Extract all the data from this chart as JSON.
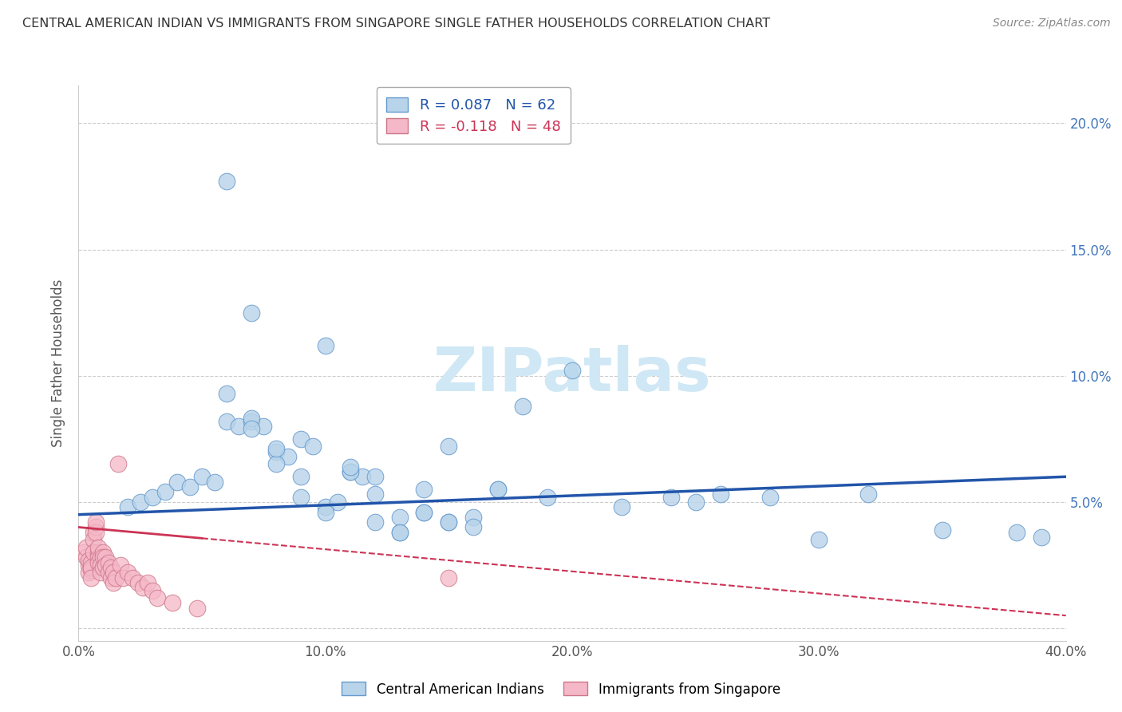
{
  "title": "CENTRAL AMERICAN INDIAN VS IMMIGRANTS FROM SINGAPORE SINGLE FATHER HOUSEHOLDS CORRELATION CHART",
  "source": "Source: ZipAtlas.com",
  "ylabel": "Single Father Households",
  "xlim": [
    0.0,
    0.4
  ],
  "ylim": [
    -0.005,
    0.215
  ],
  "yticks": [
    0.0,
    0.05,
    0.1,
    0.15,
    0.2
  ],
  "ytick_labels_right": [
    "",
    "5.0%",
    "10.0%",
    "15.0%",
    "20.0%"
  ],
  "xticks": [
    0.0,
    0.1,
    0.2,
    0.3,
    0.4
  ],
  "xtick_labels": [
    "0.0%",
    "10.0%",
    "20.0%",
    "30.0%",
    "40.0%"
  ],
  "legend_labels": [
    "Central American Indians",
    "Immigrants from Singapore"
  ],
  "R_blue": 0.087,
  "N_blue": 62,
  "R_pink": -0.118,
  "N_pink": 48,
  "blue_color": "#b8d4ea",
  "blue_edge_color": "#6699cc",
  "pink_color": "#f5b8c8",
  "pink_edge_color": "#cc7788",
  "blue_line_color": "#2255aa",
  "pink_line_color": "#cc3355",
  "title_color": "#333333",
  "source_color": "#888888",
  "axis_label_color": "#555555",
  "right_axis_color": "#4477bb",
  "watermark_color": "#d0e8f5",
  "blue_scatter_x": [
    0.02,
    0.025,
    0.03,
    0.035,
    0.04,
    0.045,
    0.05,
    0.055,
    0.06,
    0.065,
    0.07,
    0.075,
    0.08,
    0.085,
    0.09,
    0.095,
    0.1,
    0.105,
    0.11,
    0.115,
    0.12,
    0.13,
    0.14,
    0.15,
    0.16,
    0.17,
    0.19,
    0.2,
    0.22,
    0.24,
    0.26,
    0.28,
    0.3,
    0.32,
    0.35,
    0.38,
    0.39,
    0.06,
    0.07,
    0.08,
    0.09,
    0.1,
    0.11,
    0.12,
    0.13,
    0.14,
    0.15,
    0.06,
    0.07,
    0.07,
    0.08,
    0.09,
    0.1,
    0.11,
    0.12,
    0.13,
    0.14,
    0.15,
    0.16,
    0.17,
    0.18,
    0.25
  ],
  "blue_scatter_y": [
    0.048,
    0.05,
    0.052,
    0.054,
    0.058,
    0.056,
    0.06,
    0.058,
    0.082,
    0.08,
    0.082,
    0.08,
    0.07,
    0.068,
    0.075,
    0.072,
    0.048,
    0.05,
    0.062,
    0.06,
    0.06,
    0.038,
    0.055,
    0.072,
    0.044,
    0.055,
    0.052,
    0.102,
    0.048,
    0.052,
    0.053,
    0.052,
    0.035,
    0.053,
    0.039,
    0.038,
    0.036,
    0.177,
    0.125,
    0.065,
    0.06,
    0.112,
    0.062,
    0.053,
    0.044,
    0.046,
    0.042,
    0.093,
    0.083,
    0.079,
    0.071,
    0.052,
    0.046,
    0.064,
    0.042,
    0.038,
    0.046,
    0.042,
    0.04,
    0.055,
    0.088,
    0.05
  ],
  "pink_scatter_x": [
    0.002,
    0.003,
    0.003,
    0.004,
    0.004,
    0.004,
    0.005,
    0.005,
    0.005,
    0.005,
    0.006,
    0.006,
    0.006,
    0.007,
    0.007,
    0.007,
    0.008,
    0.008,
    0.008,
    0.008,
    0.009,
    0.009,
    0.009,
    0.01,
    0.01,
    0.01,
    0.011,
    0.011,
    0.012,
    0.012,
    0.013,
    0.013,
    0.014,
    0.014,
    0.015,
    0.016,
    0.017,
    0.018,
    0.02,
    0.022,
    0.024,
    0.026,
    0.028,
    0.03,
    0.032,
    0.038,
    0.048,
    0.15
  ],
  "pink_scatter_y": [
    0.03,
    0.028,
    0.032,
    0.025,
    0.027,
    0.022,
    0.026,
    0.023,
    0.024,
    0.02,
    0.038,
    0.035,
    0.03,
    0.04,
    0.038,
    0.042,
    0.03,
    0.028,
    0.026,
    0.032,
    0.028,
    0.025,
    0.022,
    0.03,
    0.028,
    0.024,
    0.028,
    0.025,
    0.026,
    0.022,
    0.024,
    0.02,
    0.022,
    0.018,
    0.02,
    0.065,
    0.025,
    0.02,
    0.022,
    0.02,
    0.018,
    0.016,
    0.018,
    0.015,
    0.012,
    0.01,
    0.008,
    0.02
  ]
}
